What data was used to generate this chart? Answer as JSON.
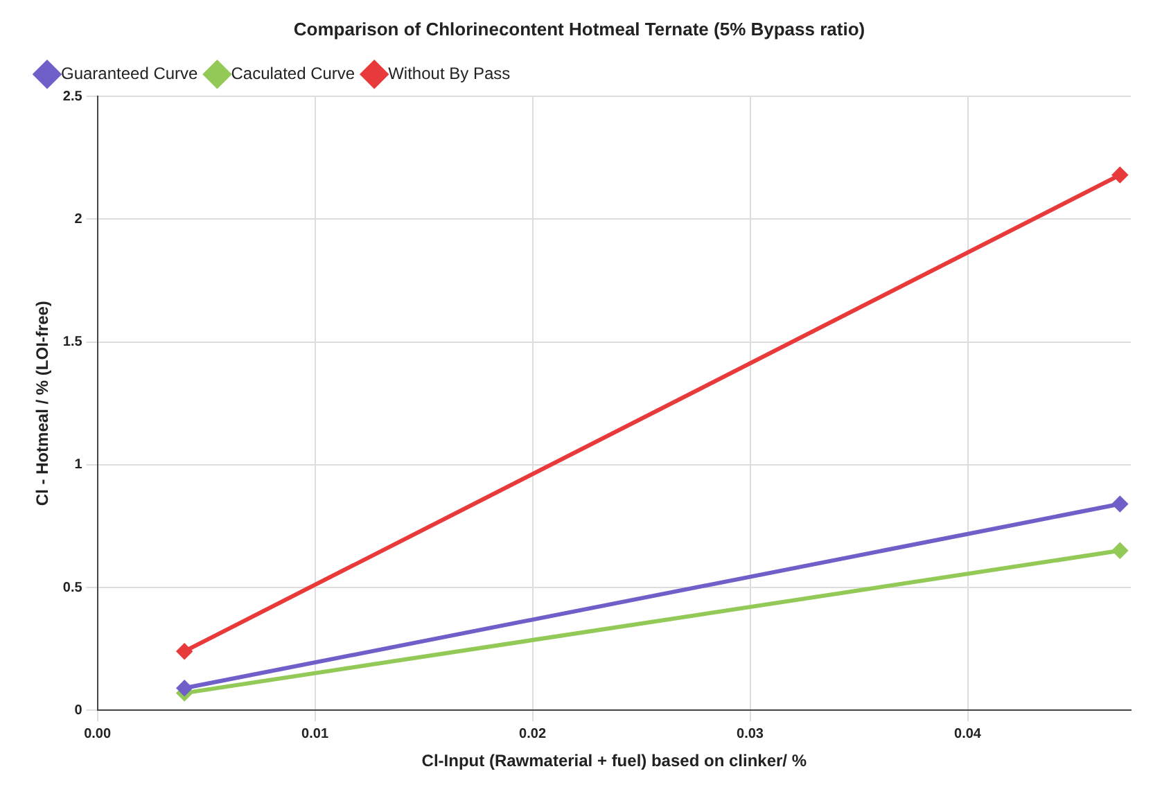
{
  "chart_data": {
    "type": "line",
    "title": "Comparison of Chlorinecontent Hotmeal Ternate (5% Bypass ratio)",
    "xlabel": "Cl-Input (Rawmaterial + fuel) based on clinker/ %",
    "ylabel": "Cl - Hotmeal / % (LOI-free)",
    "x": [
      0.004,
      0.047
    ],
    "series": [
      {
        "name": "Guaranteed Curve",
        "color": "#6f5fc8",
        "values": [
          0.09,
          0.84
        ]
      },
      {
        "name": "Caculated Curve",
        "color": "#93c957",
        "values": [
          0.07,
          0.65
        ]
      },
      {
        "name": "Without By Pass",
        "color": "#e83a3a",
        "values": [
          0.24,
          2.18
        ]
      }
    ],
    "xlim": [
      0,
      0.0475
    ],
    "xticks": [
      {
        "value": 0,
        "label": "0.00"
      },
      0.01,
      0.02,
      0.03,
      0.04
    ],
    "ylim": [
      0,
      2.5
    ],
    "yticks": [
      0,
      0.5,
      1,
      1.5,
      2,
      2.5
    ],
    "grid": true,
    "legend": "top left",
    "marker": "diamond",
    "line_style": "solid"
  }
}
